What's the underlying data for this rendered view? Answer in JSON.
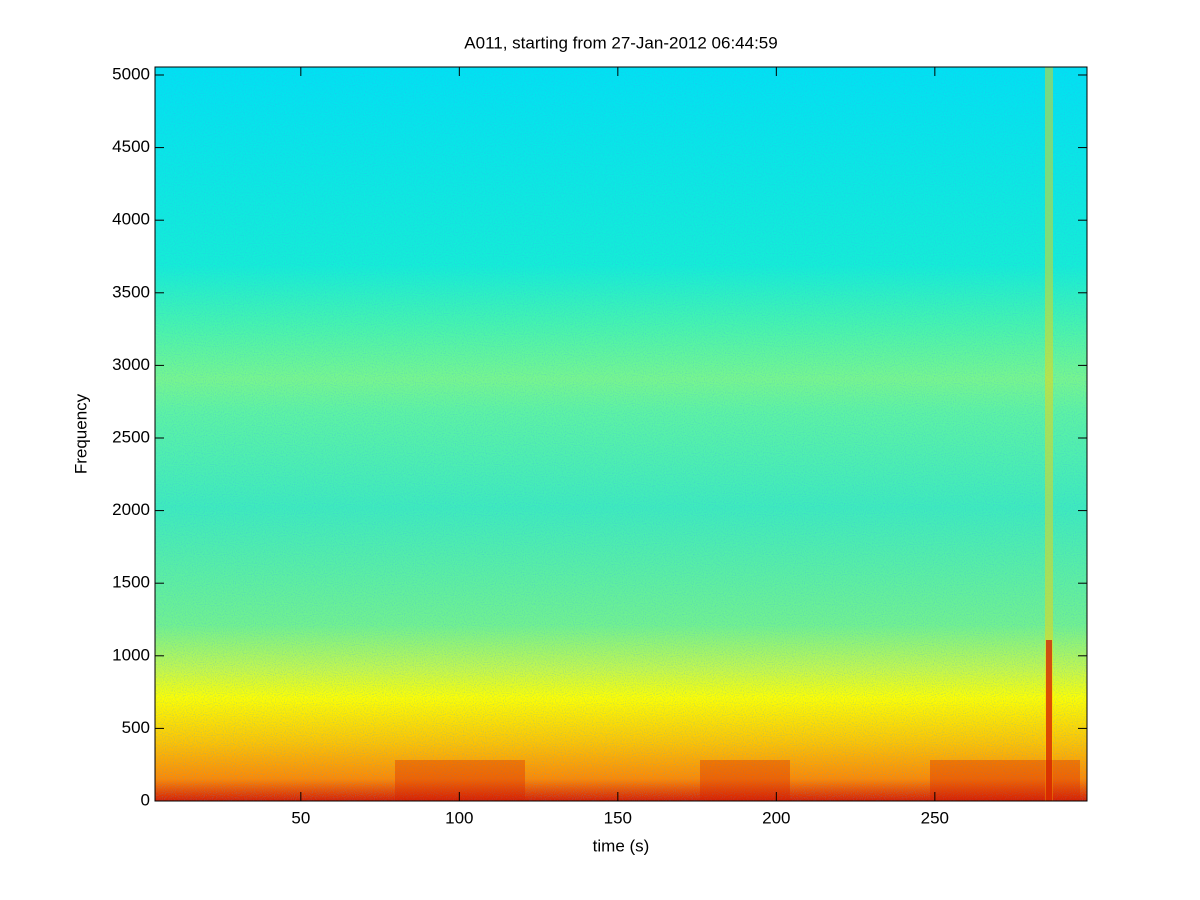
{
  "chart_data": {
    "type": "spectrogram",
    "title": "A011, starting from 27-Jan-2012 06:44:59",
    "xlabel": "time (s)",
    "ylabel": "Frequency",
    "xlim": [
      4,
      298
    ],
    "xticks": [
      50,
      100,
      150,
      200,
      250
    ],
    "ylim": [
      0,
      5055
    ],
    "yticks": [
      0,
      500,
      1000,
      1500,
      2000,
      2500,
      3000,
      3500,
      4000,
      4500,
      5000
    ]
  }
}
